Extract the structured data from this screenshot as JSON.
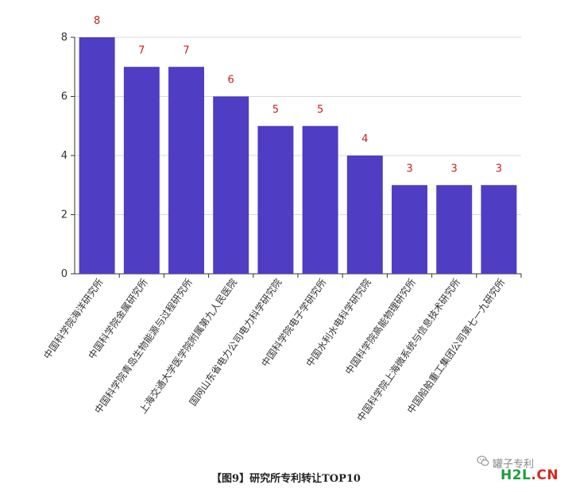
{
  "chart_data": {
    "type": "bar",
    "categories": [
      "中国科学院海洋研究所",
      "中国科学院金属研究所",
      "中国科学院青岛生物能源与过程研究所",
      "上海交通大学医学院附属第九人民医院",
      "国网山东省电力公司电力科学研究院",
      "中国科学院电子学研究所",
      "中国水利水电科学研究院",
      "中国科学院高能物理研究所",
      "中国科学院上海微系统与信息技术研究所",
      "中国船舶重工集团公司第七一九研究所"
    ],
    "values": [
      8,
      7,
      7,
      6,
      5,
      5,
      4,
      3,
      3,
      3
    ],
    "ylim": [
      0,
      8
    ],
    "yticks": [
      0,
      2,
      4,
      6,
      8
    ],
    "grid": true,
    "bar_color": "#4f3dc4",
    "label_color": "#c8211e",
    "title": "",
    "xlabel": "",
    "ylabel": ""
  },
  "caption": "【图9】研究所专利转让TOP10",
  "watermark": {
    "text": "罐子专利",
    "icon": "wechat-icon"
  },
  "logo": {
    "part1": "H2L",
    "part2": ".CN"
  }
}
